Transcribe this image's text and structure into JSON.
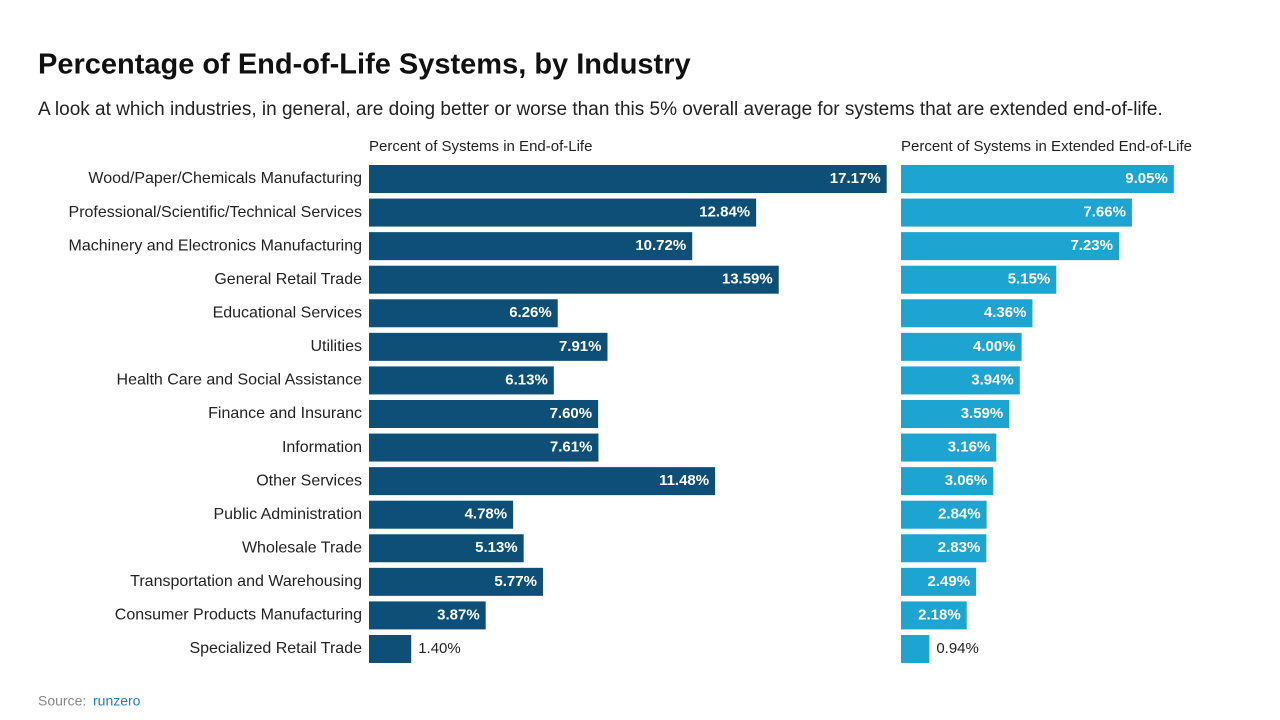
{
  "chart_data": {
    "type": "bar",
    "orientation": "horizontal",
    "title": "Percentage of End-of-Life Systems, by Industry",
    "subtitle": "A look at which industries, in general, are doing better or worse than this 5% overall average for systems that are extended end-of-life.",
    "categories": [
      "Wood/Paper/Chemicals Manufacturing",
      "Professional/Scientific/Technical Services",
      "Machinery and Electronics Manufacturing",
      "General Retail Trade",
      "Educational Services",
      "Utilities",
      "Health Care and Social Assistance",
      "Finance and Insuranc",
      "Information",
      "Other Services",
      "Public Administration",
      "Wholesale Trade",
      "Transportation and Warehousing",
      "Consumer Products Manufacturing",
      "Specialized Retail Trade"
    ],
    "series": [
      {
        "name": "Percent of Systems in End-of-Life",
        "color": "#0d4f76",
        "values": [
          17.17,
          12.84,
          10.72,
          13.59,
          6.26,
          7.91,
          6.13,
          7.6,
          7.61,
          11.48,
          4.78,
          5.13,
          5.77,
          3.87,
          1.4
        ],
        "value_labels": [
          "17.17%",
          "12.84%",
          "10.72%",
          "13.59%",
          "6.26%",
          "7.91%",
          "6.13%",
          "7.60%",
          "7.61%",
          "11.48%",
          "4.78%",
          "5.13%",
          "5.77%",
          "3.87%",
          "1.40%"
        ]
      },
      {
        "name": "Percent of Systems in Extended End-of-Life",
        "color": "#1ea4d0",
        "values": [
          9.05,
          7.66,
          7.23,
          5.15,
          4.36,
          4.0,
          3.94,
          3.59,
          3.16,
          3.06,
          2.84,
          2.83,
          2.49,
          2.18,
          0.94
        ],
        "value_labels": [
          "9.05%",
          "7.66%",
          "7.23%",
          "5.15%",
          "4.36%",
          "4.00%",
          "3.94%",
          "3.59%",
          "3.16%",
          "3.06%",
          "2.84%",
          "2.83%",
          "2.49%",
          "2.18%",
          "0.94%"
        ]
      }
    ],
    "source_label": "Source:",
    "source": "runzero"
  }
}
